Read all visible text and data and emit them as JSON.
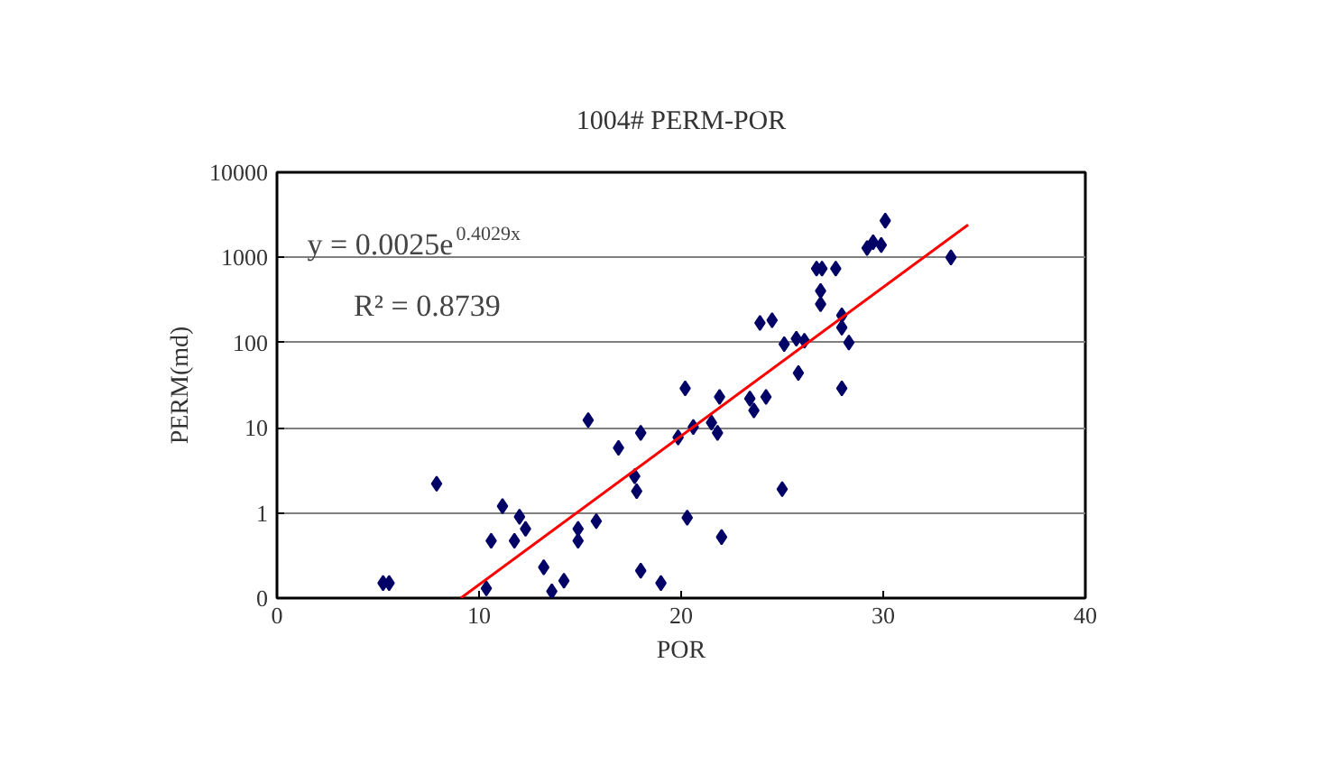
{
  "chart_data": {
    "type": "scatter",
    "title": "1004# PERM-POR",
    "xlabel": "POR",
    "ylabel": "PERM(md)",
    "log": "y",
    "grid": "y",
    "marker": "diamond",
    "xlim": [
      0,
      40
    ],
    "xticks": [
      0,
      10,
      20,
      30,
      40
    ],
    "ylim": [
      0.1,
      10000
    ],
    "yticks": [
      {
        "value": 0.1,
        "label": "0"
      },
      1,
      10,
      100,
      1000,
      10000
    ],
    "annotations": [
      "y = 0.0025e$^{0.4029x}$",
      "R² = 0.8739"
    ],
    "series": [
      {
        "color": "#000066",
        "x": [
          5.25,
          5.55,
          7.9,
          10.36,
          10.6,
          11.16,
          11.75,
          12.0,
          12.3,
          13.2,
          13.6,
          14.2,
          14.9,
          14.9,
          15.8,
          15.4,
          16.9,
          17.7,
          17.8,
          18.0,
          18.0,
          19.0,
          19.85,
          20.2,
          20.3,
          20.6,
          21.5,
          21.8,
          21.9,
          22.0,
          23.4,
          23.6,
          24.2,
          25.0,
          23.9,
          24.5,
          25.1,
          25.7,
          26.1,
          25.8,
          26.7,
          26.97,
          27.65,
          26.9,
          26.9,
          27.95,
          27.95,
          28.3,
          27.95,
          29.2,
          29.5,
          29.9,
          30.1,
          33.35
        ],
        "values": [
          0.15,
          0.15,
          2.2,
          0.13,
          0.47,
          1.2,
          0.47,
          0.9,
          0.65,
          0.23,
          0.12,
          0.16,
          0.65,
          0.47,
          0.8,
          12.3,
          5.8,
          2.7,
          1.8,
          8.7,
          0.21,
          0.15,
          7.7,
          29,
          0.88,
          10.2,
          11.5,
          8.7,
          23,
          0.52,
          22,
          16,
          23,
          1.9,
          170,
          183,
          96,
          111,
          105,
          44,
          740,
          740,
          740,
          405,
          283,
          209,
          150,
          100,
          29,
          1290,
          1510,
          1400,
          2700,
          1000
        ]
      },
      {
        "type": "line",
        "marker": "none",
        "color": "#ff0000",
        "x": [
          9.1,
          34.2
        ],
        "values": [
          0.1,
          2420
        ]
      }
    ]
  }
}
